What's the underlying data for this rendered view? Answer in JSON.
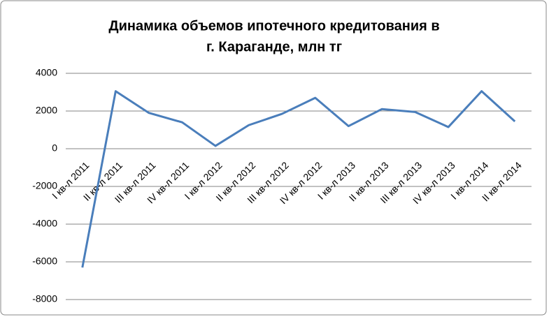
{
  "chart_data": {
    "type": "line",
    "title": [
      "Динамика объемов ипотечного кредитования в",
      "г. Караганде, млн тг"
    ],
    "categories": [
      "I кв-л 2011",
      "II кв-л 2011",
      "III кв-л 2011",
      "IV кв-л 2011",
      "I кв-л 2012",
      "II кв-л 2012",
      "III кв-л 2012",
      "IV кв-л 2012",
      "I кв-л 2013",
      "II кв-л 2013",
      "III кв-л 2013",
      "IV кв-л 2013",
      "I кв-л 2014",
      "II кв-л 2014"
    ],
    "values": [
      -6300,
      3050,
      1900,
      1400,
      150,
      1250,
      1850,
      2700,
      1200,
      2100,
      1950,
      1150,
      3050,
      1450
    ],
    "color": "#4a7ebb",
    "ylim": [
      -8000,
      4000
    ],
    "yticks": [
      -8000,
      -6000,
      -4000,
      -2000,
      0,
      2000,
      4000
    ],
    "grid": true
  }
}
